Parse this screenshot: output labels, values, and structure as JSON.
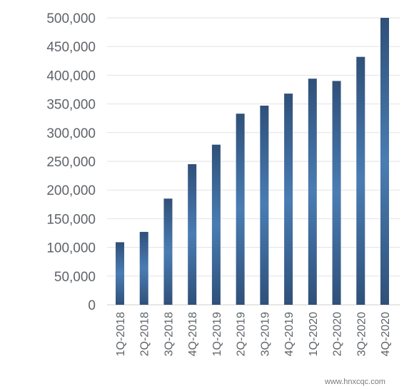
{
  "chart_data": {
    "type": "bar",
    "categories": [
      "1Q-2018",
      "2Q-2018",
      "3Q-2018",
      "4Q-2018",
      "1Q-2019",
      "2Q-2019",
      "3Q-2019",
      "4Q-2019",
      "1Q-2020",
      "2Q-2020",
      "3Q-2020",
      "4Q-2020"
    ],
    "values": [
      109000,
      127000,
      185000,
      245000,
      279000,
      333000,
      347000,
      368000,
      394000,
      390000,
      432000,
      500000
    ],
    "ylim": [
      0,
      500000
    ],
    "yticks": [
      "0",
      "50,000",
      "100,000",
      "150,000",
      "200,000",
      "250,000",
      "300,000",
      "350,000",
      "400,000",
      "450,000",
      "500,000"
    ],
    "grid": true,
    "bar_color_dark": "#2f5079",
    "bar_color_light": "#4a7db3"
  },
  "watermark": {
    "text": "www.hnxcqc.com"
  }
}
